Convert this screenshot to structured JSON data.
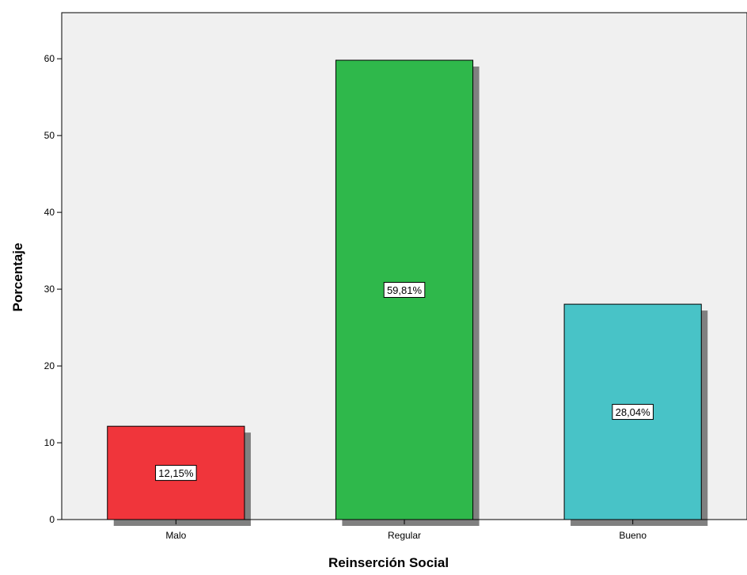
{
  "chart_data": {
    "type": "bar",
    "categories": [
      "Malo",
      "Regular",
      "Bueno"
    ],
    "values": [
      12.15,
      59.81,
      28.04
    ],
    "data_labels": [
      "12,15%",
      "59,81%",
      "28,04%"
    ],
    "xlabel": "Reinserción Social",
    "ylabel": "Porcentaje",
    "ylim": [
      0,
      66
    ],
    "yticks": [
      0,
      10,
      20,
      30,
      40,
      50,
      60
    ],
    "grid": false,
    "bar_colors": [
      "#f0353b",
      "#2fb84b",
      "#48c3c7"
    ],
    "shadow_color": "#808080",
    "plot_background": "#f0f0f0"
  }
}
